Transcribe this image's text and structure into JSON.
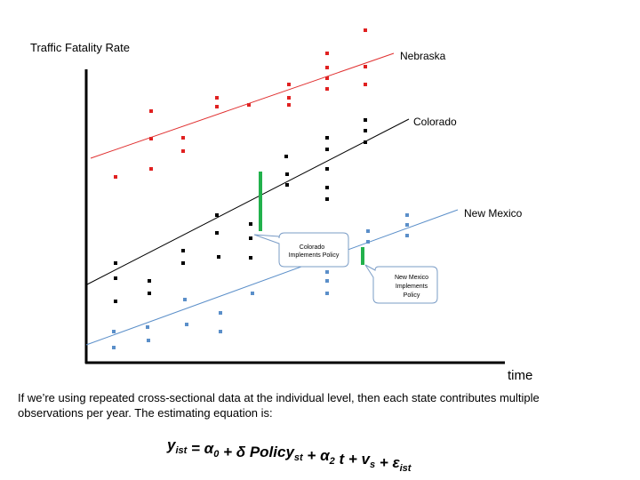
{
  "diagram": {
    "y_axis_label": "Traffic Fatality Rate",
    "x_axis_label": "time",
    "lines": [
      "Nebraska",
      "Colorado",
      "New Mexico"
    ],
    "callouts": [
      {
        "lines": [
          "Colorado",
          "Implements Policy"
        ]
      },
      {
        "lines": [
          "New Mexico",
          "Implements",
          "Policy"
        ]
      }
    ]
  },
  "caption": {
    "lines": [
      "If we’re using repeated cross-sectional data at the individual level, then each state contributes multiple",
      "observations per year. The estimating equation is:"
    ]
  },
  "equation": [
    {
      "text": "y",
      "sub": "ist"
    },
    {
      "text": " = α",
      "sub": "0"
    },
    {
      "text": " + δ Policy",
      "sub": "st"
    },
    {
      "text": " + α",
      "sub": "2"
    },
    {
      "text": " t + v",
      "sub": "s"
    },
    {
      "text": " + ε",
      "sub": "ist"
    }
  ]
}
